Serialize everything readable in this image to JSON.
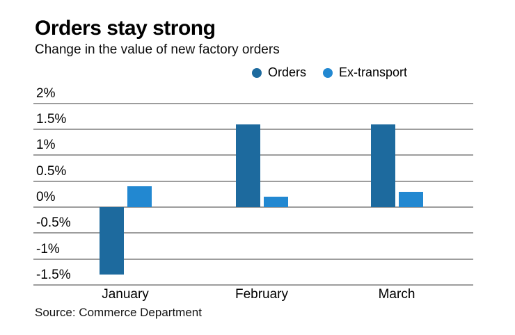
{
  "header": {
    "title": "Orders stay strong",
    "subtitle": "Change in the value of new factory orders"
  },
  "source": "Source: Commerce Department",
  "colors": {
    "orders": "#1d6a9e",
    "ex_transport": "#2288d1",
    "gridline": "#9d9d9d"
  },
  "chart_data": {
    "type": "bar",
    "title": "Orders stay strong",
    "subtitle": "Change in the value of new factory orders",
    "categories": [
      "January",
      "February",
      "March"
    ],
    "series": [
      {
        "name": "Orders",
        "color": "#1d6a9e",
        "values": [
          -1.3,
          1.6,
          1.6
        ]
      },
      {
        "name": "Ex-transport",
        "color": "#2288d1",
        "values": [
          0.4,
          0.2,
          0.3
        ]
      }
    ],
    "unit": "%",
    "yticks": [
      2,
      1.5,
      1,
      0.5,
      0,
      -0.5,
      -1,
      -1.5
    ],
    "ytick_labels": [
      "2%",
      "1.5%",
      "1%",
      "0.5%",
      "0%",
      "-0.5%",
      "-1%",
      "-1.5%"
    ],
    "ylim": [
      -1.5,
      2
    ],
    "grid": true,
    "legend_position": "top-right",
    "source": "Source: Commerce Department"
  }
}
